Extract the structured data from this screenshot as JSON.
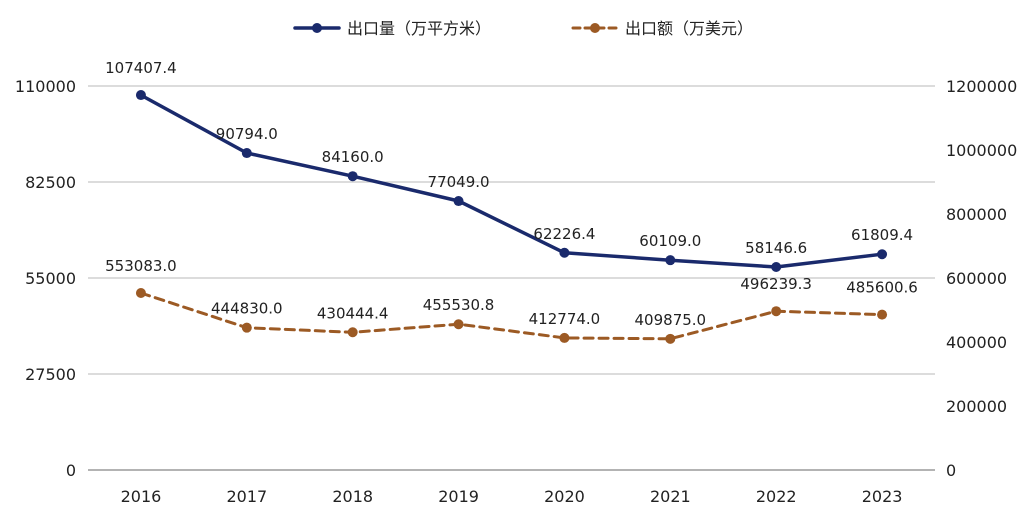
{
  "chart_data": {
    "type": "line",
    "categories": [
      "2016",
      "2017",
      "2018",
      "2019",
      "2020",
      "2021",
      "2022",
      "2023"
    ],
    "series": [
      {
        "name": "出口量（万平方米）",
        "axis": "left",
        "color": "#1a2a6c",
        "line_style": "solid",
        "values": [
          107407.4,
          90794.0,
          84160.0,
          77049.0,
          62226.4,
          60109.0,
          58146.6,
          61809.4
        ],
        "labels": [
          "107407.4",
          "90794.0",
          "84160.0",
          "77049.0",
          "62226.4",
          "60109.0",
          "58146.6",
          "61809.4"
        ]
      },
      {
        "name": "出口额（万美元）",
        "axis": "right",
        "color": "#9c5a24",
        "line_style": "dashed",
        "values": [
          553083.0,
          444830.0,
          430444.4,
          455530.8,
          412774.0,
          409875.0,
          496239.3,
          485600.6
        ],
        "labels": [
          "553083.0",
          "444830.0",
          "430444.4",
          "455530.8",
          "412774.0",
          "409875.0",
          "496239.3",
          "485600.6"
        ]
      }
    ],
    "y_left": {
      "ylim": [
        0,
        110000
      ],
      "ticks": [
        "0",
        "27500",
        "55000",
        "82500",
        "110000"
      ]
    },
    "y_right": {
      "ylim": [
        0,
        1200000
      ],
      "ticks": [
        "0",
        "200000",
        "400000",
        "600000",
        "800000",
        "1000000",
        "1200000"
      ]
    },
    "legend_position": "top-center",
    "grid": "horizontal"
  }
}
